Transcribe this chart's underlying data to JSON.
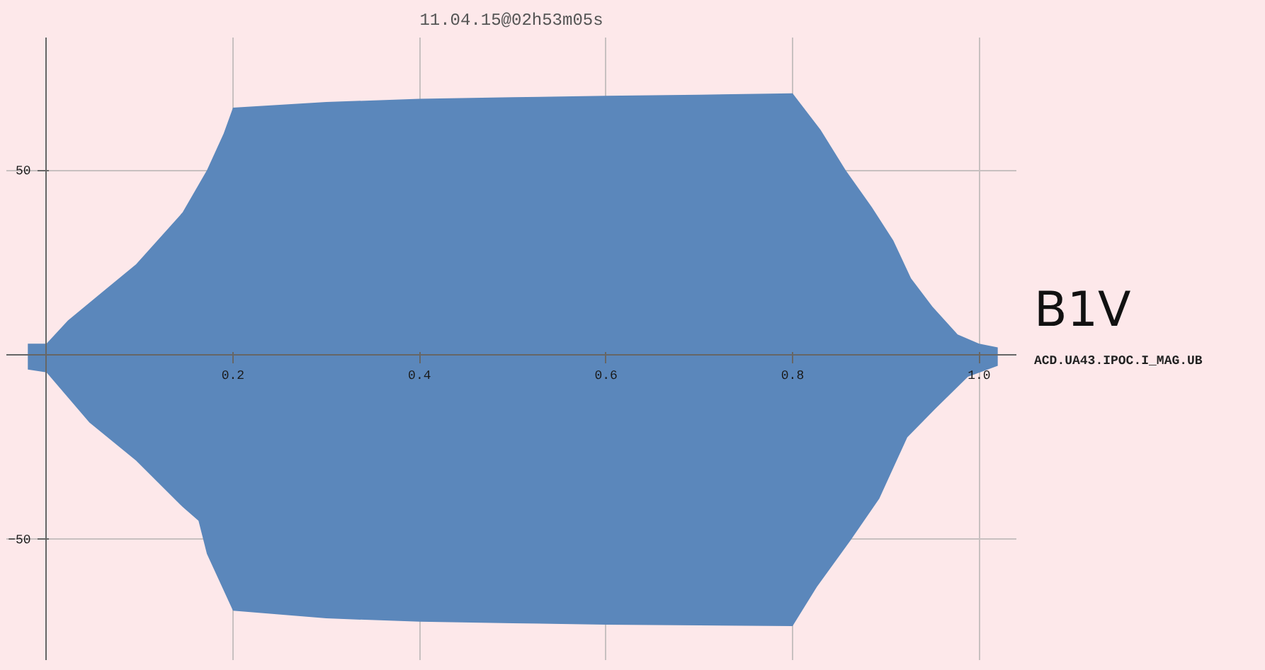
{
  "chart_data": {
    "type": "area",
    "title": "11.04.15@02h53m05s",
    "annotations": [
      "B1V",
      "ACD.UA43.IPOC.I_MAG.UB"
    ],
    "xlim": [
      -0.043,
      1.04
    ],
    "ylim": [
      -83,
      86
    ],
    "xticks": [
      0.2,
      0.4,
      0.6,
      0.8,
      {
        "value": 1.0,
        "label": "1.0"
      }
    ],
    "yticks": [
      -50,
      50
    ],
    "grid": true,
    "series": [
      {
        "color": "#5b87bb",
        "x": [
          -0.02,
          0.0,
          0.023,
          0.06,
          0.096,
          0.146,
          0.172,
          0.19,
          0.2,
          0.3,
          0.4,
          0.5,
          0.6,
          0.7,
          0.8,
          0.83,
          0.857,
          0.885,
          0.908,
          0.927,
          0.95,
          0.977,
          1.0,
          1.02
        ],
        "values": [
          3,
          3,
          9.3,
          17,
          24.5,
          38.6,
          50,
          60,
          67,
          68.5,
          69.4,
          69.8,
          70.2,
          70.5,
          70.9,
          61,
          50,
          40,
          31,
          20.7,
          13,
          5.5,
          3,
          2
        ]
      },
      {
        "color": "#5b87bb",
        "x": [
          -0.02,
          0.0,
          0.046,
          0.096,
          0.146,
          0.163,
          0.172,
          0.2,
          0.3,
          0.4,
          0.5,
          0.6,
          0.7,
          0.8,
          0.826,
          0.862,
          0.893,
          0.923,
          0.953,
          0.988,
          1.02
        ],
        "values": [
          -4,
          -4.8,
          -18.4,
          -28.7,
          -41.3,
          -45,
          -54,
          -69.4,
          -71.5,
          -72.4,
          -72.8,
          -73.2,
          -73.4,
          -73.6,
          -63,
          -50.4,
          -39,
          -22.4,
          -14.7,
          -6,
          -3
        ]
      }
    ]
  }
}
